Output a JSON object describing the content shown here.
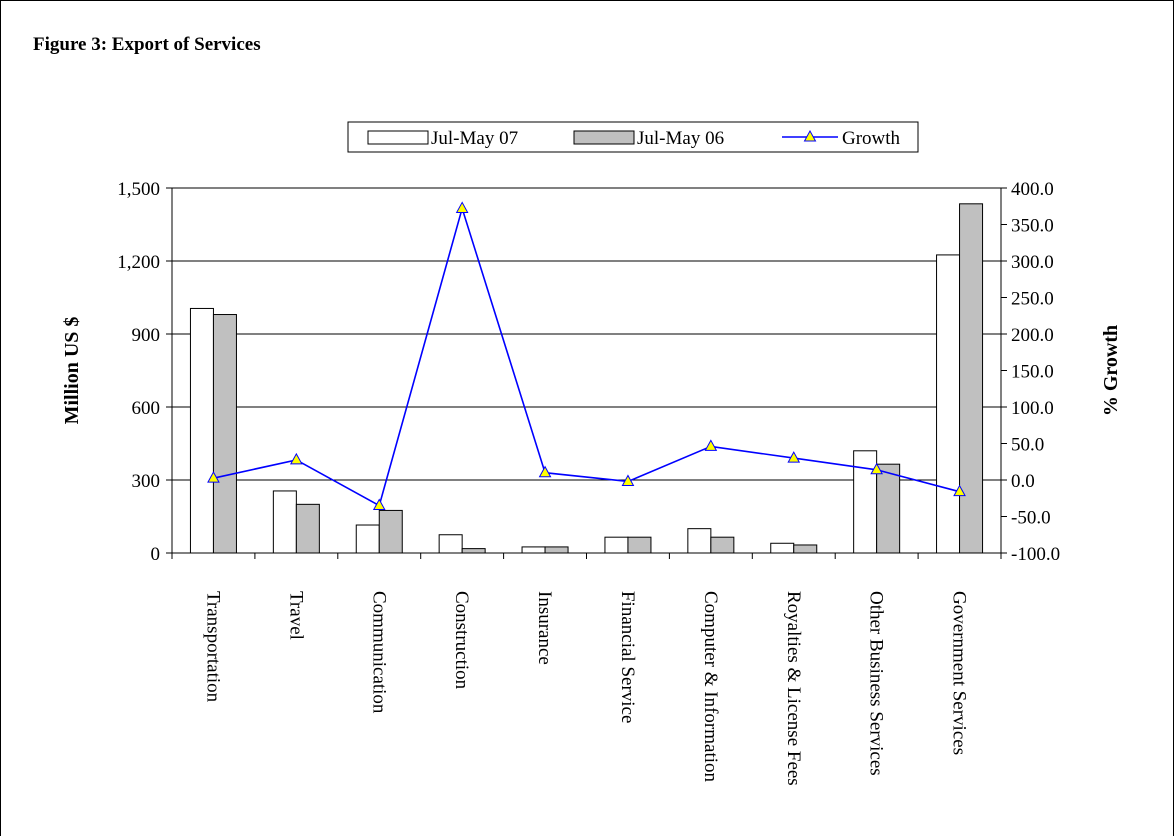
{
  "figure_title": "Figure 3: Export of Services",
  "colors": {
    "bar_2007": "#ffffff",
    "bar_2006": "#c0c0c0",
    "line": "#0000ff",
    "marker_fill": "#ffff00",
    "marker_stroke": "#0000ff"
  },
  "chart_data": {
    "type": "bar",
    "title": "Figure 3: Export of Services",
    "categories": [
      "Transportation",
      "Travel",
      "Communication",
      "Construction",
      "Insurance",
      "Financial  Service",
      "Computer & Information",
      "Royalties & License Fees",
      "Other Business Services",
      "Government Services"
    ],
    "series": [
      {
        "name": "Jul-May 07",
        "axis": "left",
        "type": "bar",
        "values": [
          1005,
          255,
          115,
          75,
          25,
          65,
          100,
          40,
          420,
          1225
        ]
      },
      {
        "name": "Jul-May 06",
        "axis": "left",
        "type": "bar",
        "values": [
          980,
          200,
          175,
          18,
          25,
          65,
          65,
          33,
          365,
          1435
        ]
      },
      {
        "name": "Growth",
        "axis": "right",
        "type": "line",
        "values": [
          2.5,
          27.5,
          -35,
          372,
          10,
          -2,
          46,
          30,
          14,
          -16
        ]
      }
    ],
    "ylabel": "Million US $",
    "y2label": "% Growth",
    "ylim": [
      0,
      1500
    ],
    "y2lim": [
      -100,
      400
    ],
    "yticks": [
      "0",
      "300",
      "600",
      "900",
      "1,200",
      "1,500"
    ],
    "y2ticks": [
      "-100.0",
      "-50.0",
      "0.0",
      "50.0",
      "100.0",
      "150.0",
      "200.0",
      "250.0",
      "300.0",
      "350.0",
      "400.0"
    ],
    "grid": true,
    "legend_position": "top"
  }
}
